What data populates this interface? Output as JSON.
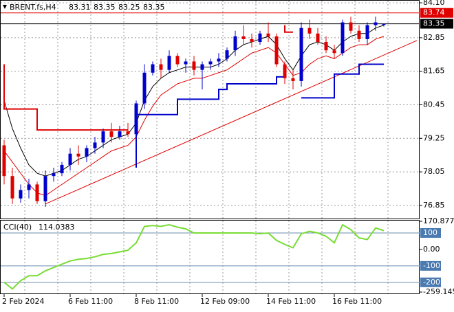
{
  "chart_data": [
    {
      "type": "candlestick",
      "title": "BRENT.fs,H4",
      "categories": [
        "2 Feb 2024",
        null,
        null,
        null,
        null,
        null,
        null,
        null,
        "6 Feb 11:00",
        null,
        null,
        null,
        null,
        null,
        null,
        null,
        "8 Feb 11:00",
        null,
        null,
        null,
        null,
        null,
        null,
        null,
        "12 Feb 09:00",
        null,
        null,
        null,
        null,
        null,
        null,
        null,
        "14 Feb 11:00",
        null,
        null,
        null,
        null,
        null,
        null,
        null,
        "16 Feb 11:00",
        null,
        null,
        null,
        null,
        null,
        null
      ],
      "open": [
        79.0,
        77.9,
        77.1,
        77.4,
        77.6,
        77.0,
        77.9,
        78.0,
        78.3,
        78.7,
        78.6,
        78.9,
        79.1,
        79.5,
        79.3,
        79.5,
        79.4,
        80.5,
        81.6,
        81.9,
        81.7,
        82.2,
        81.9,
        82.0,
        81.7,
        81.9,
        82.0,
        82.1,
        82.4,
        82.9,
        82.8,
        82.7,
        83.0,
        82.9,
        81.9,
        81.4,
        81.3,
        83.2,
        83.0,
        82.7,
        82.4,
        82.3,
        83.4,
        83.1,
        82.8,
        83.3,
        83.31
      ],
      "high": [
        79.2,
        78.2,
        77.6,
        77.8,
        77.7,
        78.1,
        78.2,
        78.4,
        78.9,
        79.0,
        79.0,
        79.3,
        79.6,
        79.8,
        79.7,
        79.8,
        80.6,
        81.9,
        82.0,
        82.1,
        82.4,
        82.3,
        82.1,
        82.2,
        82.0,
        82.1,
        82.3,
        82.5,
        83.1,
        83.3,
        83.0,
        83.1,
        83.4,
        83.0,
        82.0,
        81.7,
        83.4,
        83.5,
        83.2,
        82.9,
        82.6,
        83.5,
        83.6,
        83.3,
        83.4,
        83.6,
        83.35
      ],
      "low": [
        77.6,
        76.9,
        76.95,
        77.1,
        76.9,
        76.8,
        77.7,
        77.9,
        78.1,
        78.3,
        78.4,
        78.7,
        78.9,
        79.1,
        79.2,
        79.3,
        79.3,
        80.3,
        81.5,
        81.4,
        81.6,
        81.8,
        81.6,
        81.5,
        81.0,
        81.7,
        81.8,
        82.0,
        82.2,
        82.6,
        82.5,
        82.6,
        82.7,
        81.8,
        81.2,
        81.0,
        81.1,
        82.8,
        82.6,
        82.3,
        82.1,
        82.2,
        83.0,
        82.7,
        82.6,
        83.1,
        83.25
      ],
      "close": [
        77.9,
        77.1,
        77.4,
        77.6,
        77.0,
        77.9,
        78.0,
        78.3,
        78.7,
        78.6,
        78.9,
        79.1,
        79.5,
        79.3,
        79.5,
        79.4,
        80.5,
        81.6,
        81.9,
        81.7,
        82.2,
        81.9,
        82.0,
        81.7,
        81.9,
        82.0,
        82.1,
        82.4,
        82.9,
        82.8,
        82.7,
        83.0,
        82.9,
        81.9,
        81.4,
        81.3,
        83.2,
        83.0,
        82.7,
        82.4,
        82.3,
        83.4,
        83.1,
        82.8,
        83.3,
        83.4,
        83.35
      ],
      "up_color": "#0000cc",
      "down_color": "#e00000",
      "overlays": [
        {
          "style": "line",
          "color": "#000000",
          "values": [
            80.6,
            79.6,
            78.9,
            78.3,
            78.0,
            77.9,
            78.0,
            78.1,
            78.3,
            78.5,
            78.6,
            78.8,
            79.0,
            79.2,
            79.3,
            79.4,
            79.8,
            80.6,
            81.1,
            81.4,
            81.6,
            81.7,
            81.8,
            81.8,
            81.8,
            81.8,
            81.9,
            82.1,
            82.4,
            82.6,
            82.7,
            82.8,
            82.9,
            82.6,
            82.1,
            81.7,
            82.2,
            82.6,
            82.7,
            82.6,
            82.4,
            82.7,
            82.9,
            83.0,
            83.0,
            83.2,
            83.3
          ]
        },
        {
          "style": "line",
          "color": "#e00000",
          "values": [
            78.8,
            78.4,
            78.0,
            77.6,
            77.3,
            77.2,
            77.4,
            77.6,
            77.8,
            78.0,
            78.2,
            78.4,
            78.6,
            78.8,
            78.9,
            79.0,
            79.3,
            79.9,
            80.4,
            80.8,
            81.0,
            81.2,
            81.3,
            81.4,
            81.4,
            81.5,
            81.6,
            81.7,
            81.9,
            82.1,
            82.3,
            82.4,
            82.5,
            82.3,
            81.9,
            81.5,
            81.6,
            81.9,
            82.1,
            82.2,
            82.1,
            82.3,
            82.5,
            82.6,
            82.6,
            82.8,
            82.9
          ]
        },
        {
          "style": "step",
          "color": "#0000cc",
          "values": [
            null,
            null,
            null,
            null,
            null,
            null,
            null,
            null,
            null,
            null,
            null,
            null,
            null,
            null,
            null,
            null,
            78.2,
            80.1,
            80.1,
            80.1,
            80.1,
            80.1,
            80.65,
            80.65,
            80.65,
            80.65,
            80.65,
            81.0,
            81.2,
            81.2,
            81.2,
            81.2,
            81.2,
            81.2,
            81.45,
            null,
            80.7,
            80.7,
            80.7,
            80.7,
            80.7,
            81.55,
            81.55,
            81.55,
            81.9,
            81.9,
            81.9
          ]
        },
        {
          "style": "step",
          "color": "#e00000",
          "values": [
            81.9,
            80.3,
            80.3,
            80.3,
            80.3,
            79.55,
            79.55,
            79.55,
            79.55,
            79.55,
            79.55,
            79.55,
            79.55,
            79.55,
            79.55,
            79.55,
            null,
            null,
            null,
            null,
            null,
            null,
            null,
            null,
            null,
            null,
            null,
            null,
            null,
            null,
            null,
            null,
            null,
            null,
            83.3,
            83.05,
            null,
            null,
            null,
            null,
            null,
            null,
            null,
            null,
            null,
            null,
            null
          ]
        }
      ],
      "trend_line": {
        "color": "#e00000",
        "start": [
          5,
          76.9
        ],
        "end": [
          50,
          82.75
        ]
      },
      "price_markers": [
        {
          "value": 83.74,
          "color": "#e00000"
        },
        {
          "value": 83.35,
          "color": "#000000"
        }
      ],
      "ylim": [
        76.38,
        84.2
      ],
      "yticks": [
        {
          "value": 84.1,
          "label": "84.10"
        },
        82.85,
        81.65,
        80.45,
        79.25,
        78.05,
        76.85
      ],
      "grid": true
    },
    {
      "type": "line",
      "title": "CCI(40)",
      "color": "#77dd33",
      "values": [
        -200,
        -240,
        -190,
        -160,
        -160,
        -130,
        -110,
        -90,
        -70,
        -60,
        -55,
        -45,
        -30,
        -25,
        -15,
        -5,
        40,
        140,
        145,
        140,
        150,
        135,
        125,
        100,
        100,
        100,
        100,
        100,
        100,
        100,
        100,
        95,
        100,
        55,
        30,
        10,
        95,
        110,
        100,
        80,
        40,
        150,
        120,
        70,
        60,
        130,
        114.0383
      ],
      "ylim": [
        -259.145,
        170.877
      ],
      "yticks": [
        170.877,
        100,
        {
          "value": 0,
          "label": "0.00"
        },
        -100,
        -200,
        -259.145
      ]
    }
  ]
}
